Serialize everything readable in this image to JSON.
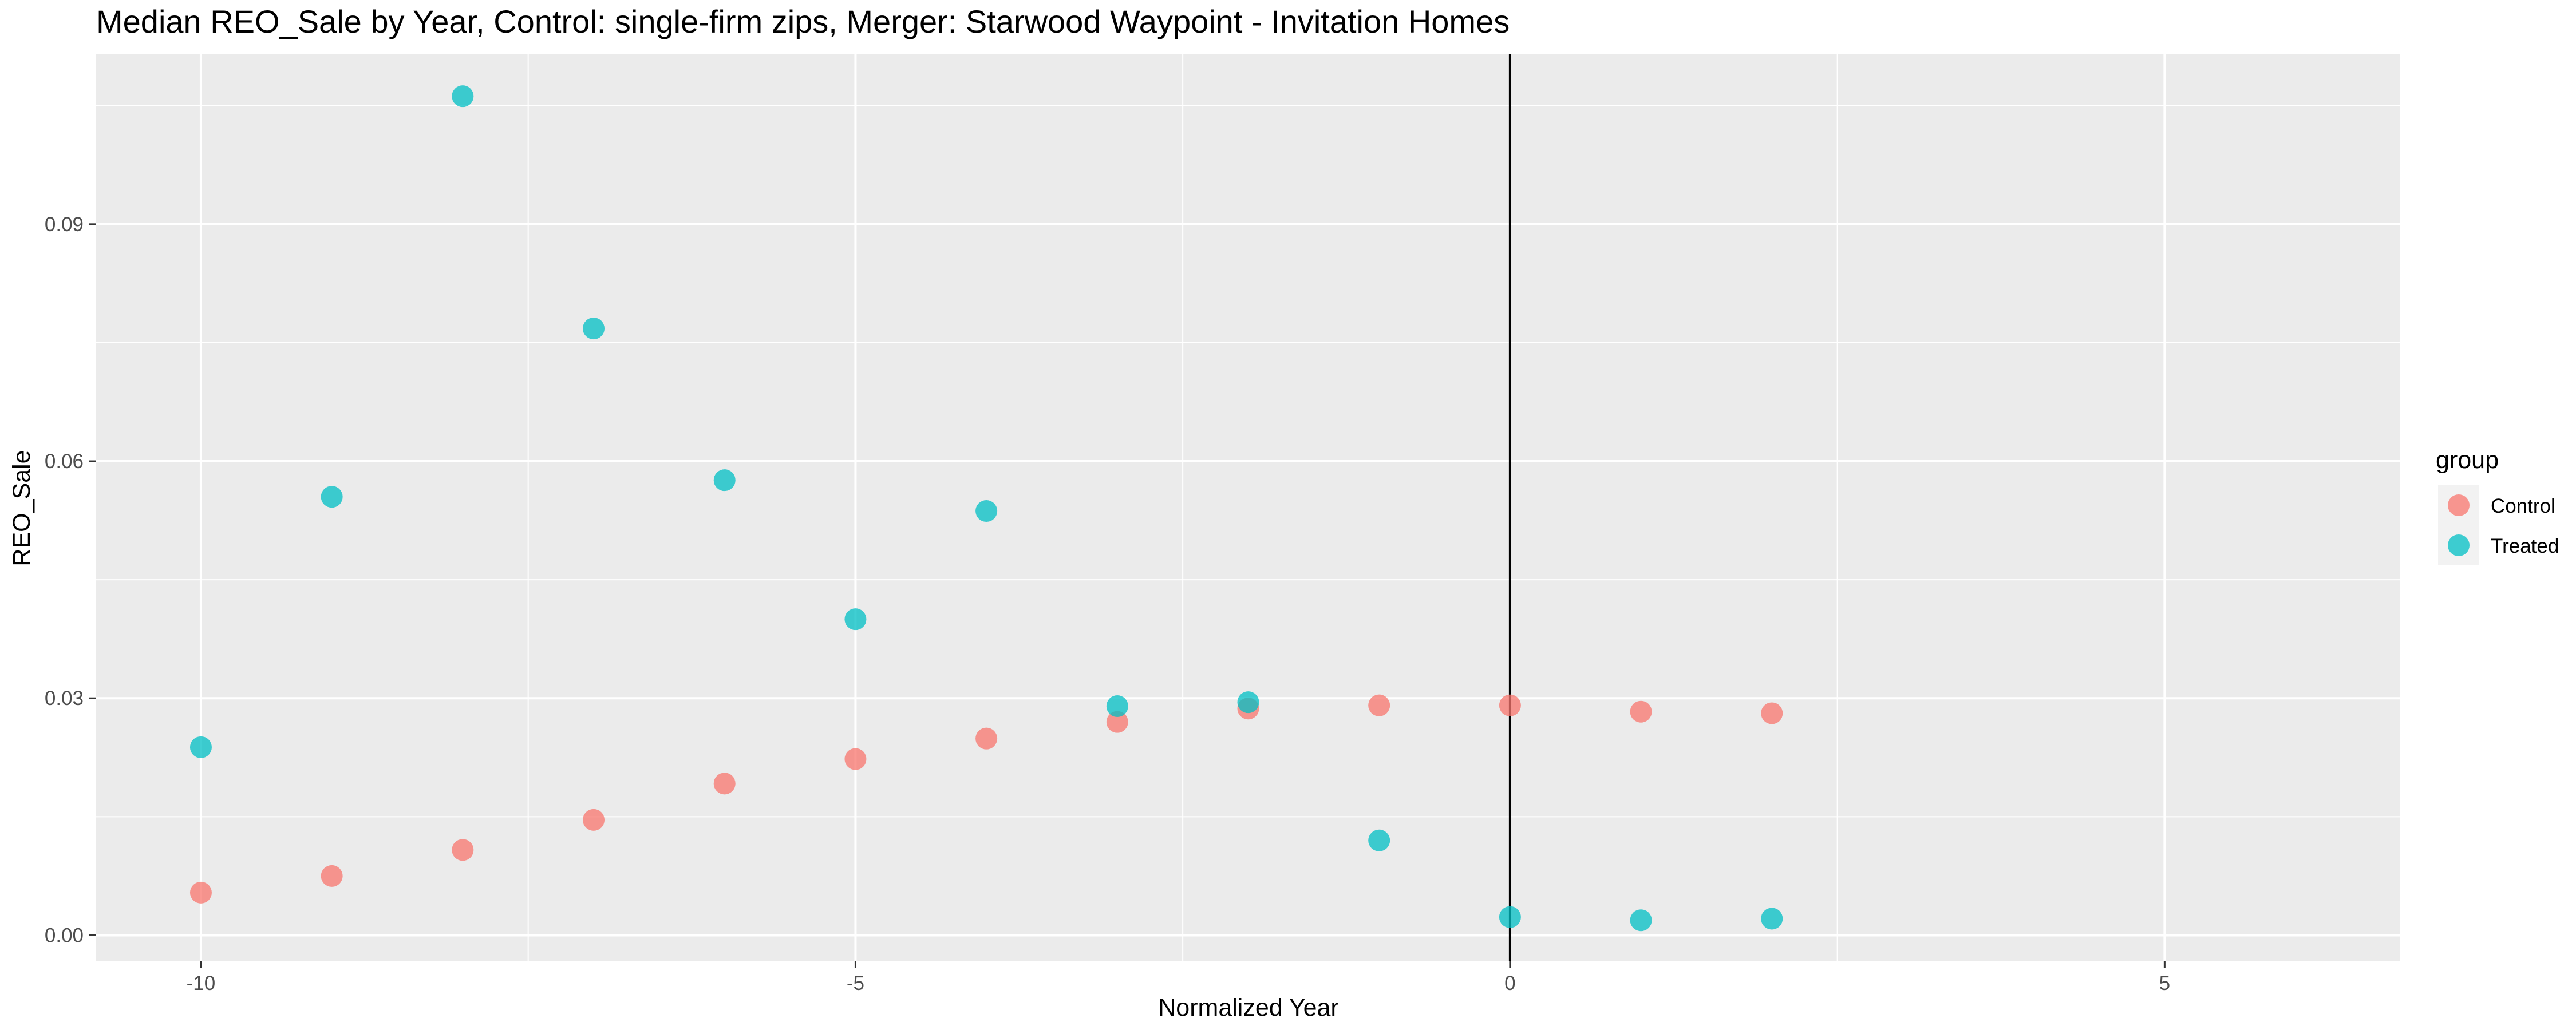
{
  "chart_data": {
    "type": "scatter",
    "title": "Median REO_Sale by Year, Control: single-firm zips, Merger: Starwood Waypoint - Invitation Homes",
    "xlabel": "Normalized Year",
    "ylabel": "REO_Sale",
    "xlim": [
      -10.8,
      6.8
    ],
    "ylim": [
      -0.0033,
      0.1115
    ],
    "x_ticks": [
      -10,
      -5,
      0,
      5
    ],
    "x_tick_labels": [
      "-10",
      "-5",
      "0",
      "5"
    ],
    "y_ticks": [
      0.0,
      0.03,
      0.06,
      0.09
    ],
    "y_tick_labels": [
      "0.00",
      "0.03",
      "0.06",
      "0.09"
    ],
    "grid": true,
    "vertical_reference_line": 0,
    "legend": {
      "title": "group",
      "position": "right"
    },
    "series": [
      {
        "name": "Control",
        "color": "#F8766D",
        "points": [
          {
            "x": -10,
            "y": 0.0054
          },
          {
            "x": -9,
            "y": 0.0075
          },
          {
            "x": -8,
            "y": 0.0108
          },
          {
            "x": -7,
            "y": 0.0146
          },
          {
            "x": -6,
            "y": 0.0192
          },
          {
            "x": -5,
            "y": 0.0223
          },
          {
            "x": -4,
            "y": 0.0249
          },
          {
            "x": -3,
            "y": 0.027
          },
          {
            "x": -2,
            "y": 0.0287
          },
          {
            "x": -1,
            "y": 0.0291
          },
          {
            "x": 0,
            "y": 0.0291
          },
          {
            "x": 1,
            "y": 0.0283
          },
          {
            "x": 2,
            "y": 0.0281
          }
        ]
      },
      {
        "name": "Treated",
        "color": "#00BFC4",
        "points": [
          {
            "x": -10,
            "y": 0.0238
          },
          {
            "x": -9,
            "y": 0.0555
          },
          {
            "x": -8,
            "y": 0.1062
          },
          {
            "x": -7,
            "y": 0.0768
          },
          {
            "x": -6,
            "y": 0.0576
          },
          {
            "x": -5,
            "y": 0.04
          },
          {
            "x": -4,
            "y": 0.0537
          },
          {
            "x": -3,
            "y": 0.029
          },
          {
            "x": -2,
            "y": 0.0295
          },
          {
            "x": -1,
            "y": 0.012
          },
          {
            "x": 0,
            "y": 0.0023
          },
          {
            "x": 1,
            "y": 0.0019
          },
          {
            "x": 2,
            "y": 0.0021
          }
        ]
      }
    ]
  }
}
